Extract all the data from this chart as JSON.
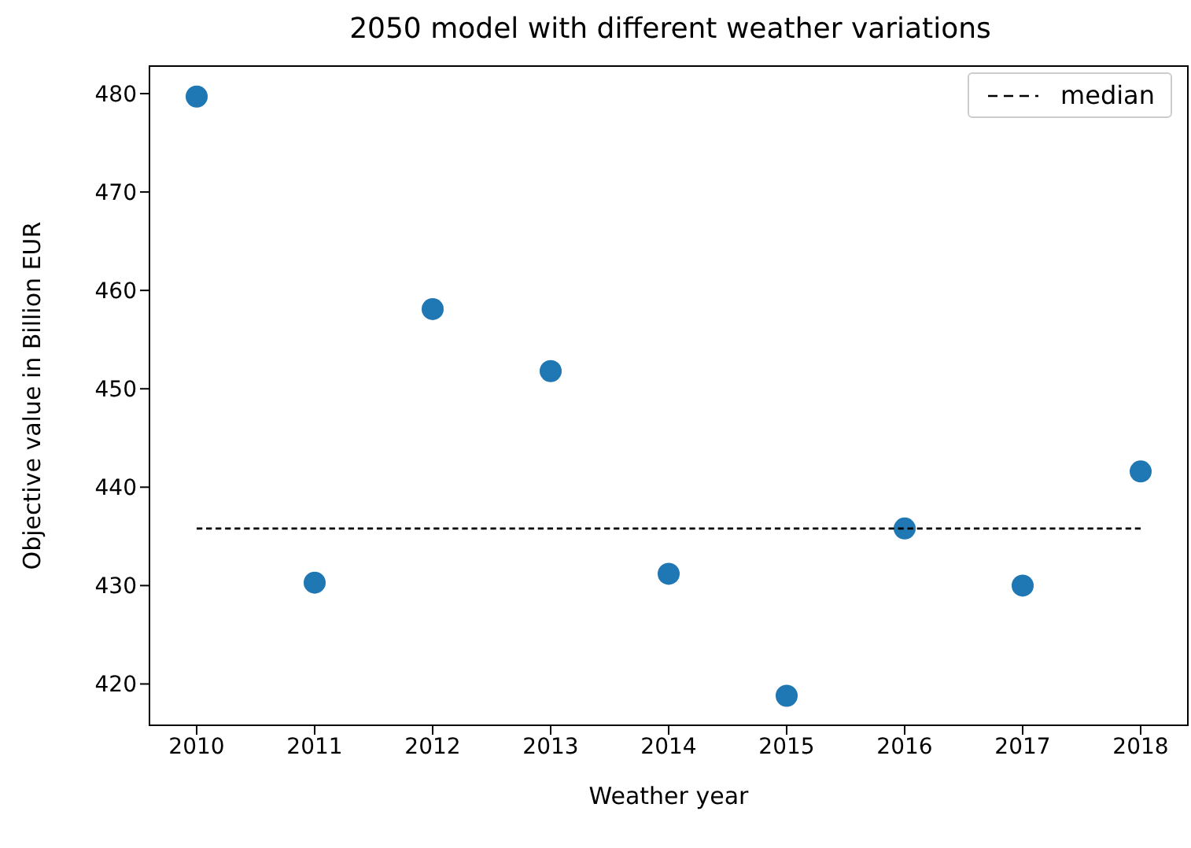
{
  "chart_data": {
    "type": "scatter",
    "title": "2050 model with different weather variations",
    "xlabel": "Weather year",
    "ylabel": "Objective value in Billion EUR",
    "xlim": [
      2009.6,
      2018.4
    ],
    "xticks": [
      2010,
      2011,
      2012,
      2013,
      2014,
      2015,
      2016,
      2017,
      2018
    ],
    "ylim": [
      415.8,
      482.8
    ],
    "yticks": [
      420,
      430,
      440,
      450,
      460,
      470,
      480
    ],
    "grid": false,
    "legend": "top right",
    "marker": "circle",
    "series": [
      {
        "color": "#1f77b4",
        "x": [
          2010,
          2011,
          2012,
          2013,
          2014,
          2015,
          2016,
          2017,
          2018
        ],
        "values": [
          479.7,
          430.3,
          458.1,
          451.8,
          431.2,
          418.8,
          435.8,
          430.0,
          441.6
        ]
      },
      {
        "type": "line",
        "name": "median",
        "color": "#000000",
        "line_style": "dashed",
        "marker": "none",
        "x": [
          2010,
          2018
        ],
        "values": [
          435.8,
          435.8
        ]
      }
    ]
  }
}
